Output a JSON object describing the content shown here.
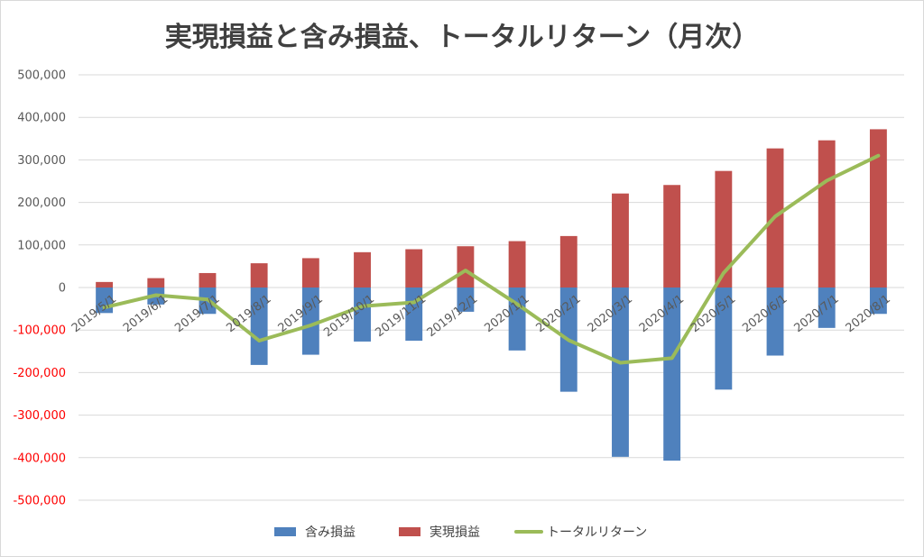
{
  "chart_data": {
    "type": "bar",
    "title": "実現損益と含み損益、トータルリターン（月次）",
    "categories": [
      "2019/5/1",
      "2019/6/1",
      "2019/7/1",
      "2019/8/1",
      "2019/9/1",
      "2019/10/1",
      "2019/11/1",
      "2019/12/1",
      "2020/1/1",
      "2020/2/1",
      "2020/3/1",
      "2020/4/1",
      "2020/5/1",
      "2020/6/1",
      "2020/7/1",
      "2020/8/1"
    ],
    "ylim": [
      -500000,
      500000
    ],
    "yticks": [
      500000,
      400000,
      300000,
      200000,
      100000,
      0,
      -100000,
      -200000,
      -300000,
      -400000,
      -500000
    ],
    "ytick_labels": [
      "500,000",
      "400,000",
      "300,000",
      "200,000",
      "100,000",
      "0",
      "-100,000",
      "-200,000",
      "-300,000",
      "-400,000",
      "-500,000"
    ],
    "grid": true,
    "legend_position": "bottom",
    "series": [
      {
        "name": "含み損益",
        "type": "bar",
        "color": "#4f81bd",
        "values": [
          -60000,
          -40000,
          -62000,
          -182000,
          -158000,
          -127000,
          -125000,
          -57000,
          -148000,
          -245000,
          -398000,
          -407000,
          -240000,
          -160000,
          -95000,
          -62000
        ]
      },
      {
        "name": "実現損益",
        "type": "bar",
        "color": "#c0504d",
        "values": [
          13000,
          22000,
          34000,
          57000,
          69000,
          83000,
          90000,
          97000,
          109000,
          121000,
          221000,
          241000,
          274000,
          327000,
          346000,
          372000
        ]
      },
      {
        "name": "トータルリターン",
        "type": "line",
        "color": "#9bbb59",
        "values": [
          -47000,
          -18000,
          -28000,
          -125000,
          -89000,
          -44000,
          -35000,
          40000,
          -39000,
          -124000,
          -177000,
          -166000,
          34000,
          167000,
          251000,
          310000
        ]
      }
    ],
    "negative_label_color": "#ff0000",
    "positive_label_color": "#595959"
  }
}
